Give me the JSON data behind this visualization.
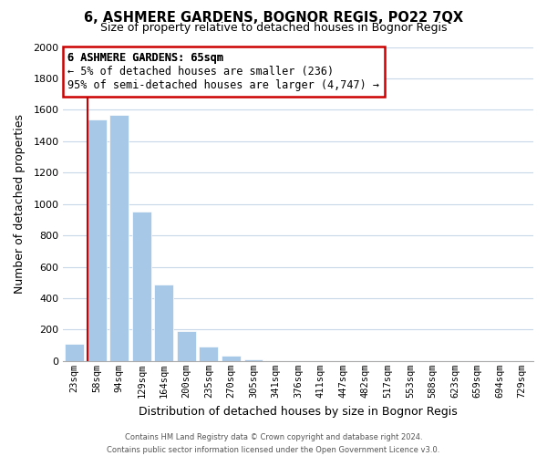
{
  "title": "6, ASHMERE GARDENS, BOGNOR REGIS, PO22 7QX",
  "subtitle": "Size of property relative to detached houses in Bognor Regis",
  "xlabel": "Distribution of detached houses by size in Bognor Regis",
  "ylabel": "Number of detached properties",
  "bar_labels": [
    "23sqm",
    "58sqm",
    "94sqm",
    "129sqm",
    "164sqm",
    "200sqm",
    "235sqm",
    "270sqm",
    "305sqm",
    "341sqm",
    "376sqm",
    "411sqm",
    "447sqm",
    "482sqm",
    "517sqm",
    "553sqm",
    "588sqm",
    "623sqm",
    "659sqm",
    "694sqm",
    "729sqm"
  ],
  "bar_heights": [
    110,
    1540,
    1565,
    950,
    485,
    190,
    95,
    35,
    12,
    0,
    0,
    0,
    0,
    0,
    0,
    0,
    0,
    0,
    0,
    0,
    0
  ],
  "bar_color": "#a8c8e8",
  "vline_color": "#cc0000",
  "vline_x": 0.57,
  "ylim": [
    0,
    2000
  ],
  "yticks": [
    0,
    200,
    400,
    600,
    800,
    1000,
    1200,
    1400,
    1600,
    1800,
    2000
  ],
  "annotation_title": "6 ASHMERE GARDENS: 65sqm",
  "annotation_line1": "← 5% of detached houses are smaller (236)",
  "annotation_line2": "95% of semi-detached houses are larger (4,747) →",
  "annotation_box_color": "#ffffff",
  "annotation_box_edgecolor": "#cc0000",
  "footer_line1": "Contains HM Land Registry data © Crown copyright and database right 2024.",
  "footer_line2": "Contains public sector information licensed under the Open Government Licence v3.0.",
  "background_color": "#ffffff",
  "grid_color": "#c8d8e8"
}
